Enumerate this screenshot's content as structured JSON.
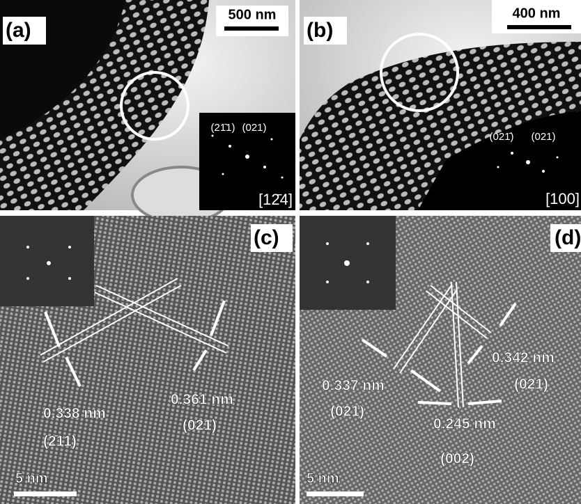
{
  "panels": [
    {
      "label": "(a)",
      "scale_bar": "500 nm",
      "spots": [
        "(21̄1)",
        "(021)"
      ],
      "zone_axis": "[12̄4]"
    },
    {
      "label": "(b)",
      "scale_bar": "400 nm",
      "spots": [
        "(021̄)",
        "(021)"
      ],
      "zone_axis": "[100]"
    },
    {
      "label": "(c)",
      "scale_bar": "5 nm",
      "annotations": [
        "0.338 nm",
        "(2̄11)",
        "0.361 nm",
        "(021)"
      ]
    },
    {
      "label": "(d)",
      "scale_bar": "5 nm",
      "annotations": [
        "0.342 nm",
        "(021)",
        "0.337 nm",
        "(021̄)",
        "0.245 nm",
        "(002)"
      ]
    }
  ]
}
